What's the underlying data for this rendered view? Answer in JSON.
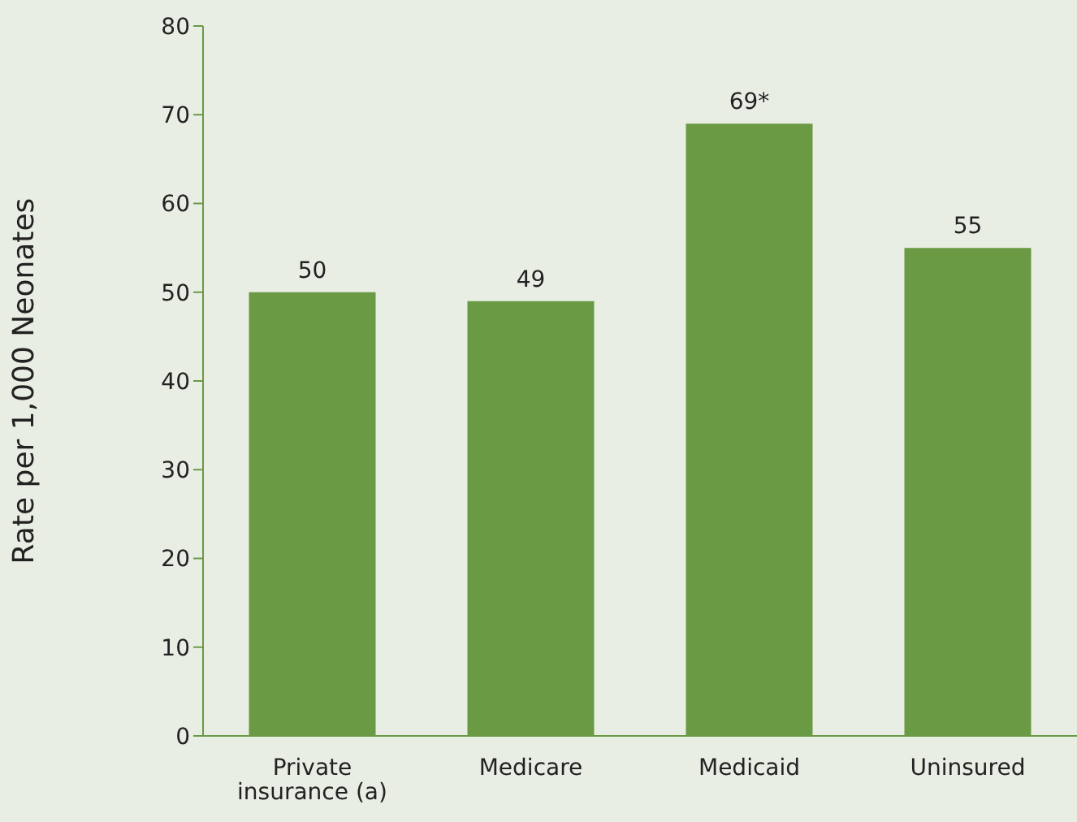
{
  "chart_data": {
    "type": "bar",
    "ylabel": "Rate per 1,000 Neonates",
    "categories": [
      "Private insurance (a)",
      "Medicare",
      "Medicaid",
      "Uninsured"
    ],
    "values": [
      50,
      49,
      69,
      55
    ],
    "value_labels": [
      "50",
      "49",
      "69*",
      "55"
    ],
    "color": "#6b9a45",
    "ylim": [
      0,
      80
    ],
    "yticks": [
      0,
      10,
      20,
      30,
      40,
      50,
      60,
      70,
      80
    ],
    "grid": false,
    "legend": false
  }
}
